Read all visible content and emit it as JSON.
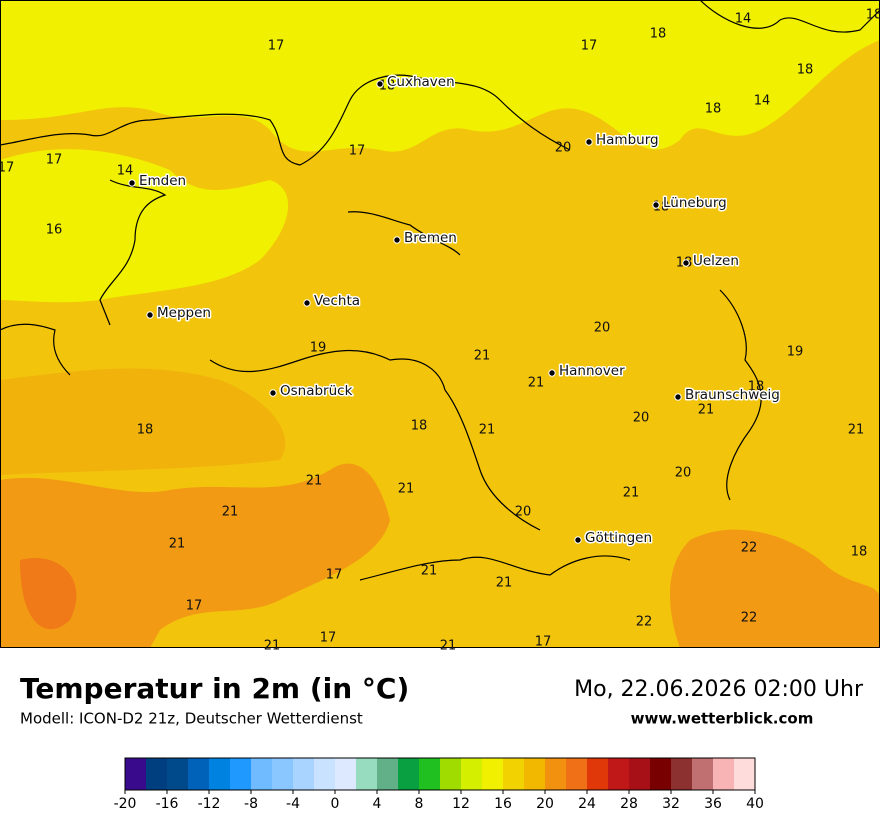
{
  "map": {
    "cities": [
      "Cuxhaven",
      "Hamburg",
      "Emden",
      "Lüneburg",
      "Bremen",
      "Uelzen",
      "Meppen",
      "Vechta",
      "Hannover",
      "Osnabrück",
      "Braunschweig",
      "Göttingen"
    ],
    "values": [
      17,
      17,
      18,
      14,
      18,
      18,
      14,
      18,
      18,
      20,
      17,
      17,
      17,
      14,
      16,
      18,
      18,
      20,
      19,
      19,
      21,
      21,
      18,
      21,
      20,
      21,
      18,
      18,
      21,
      20,
      21,
      21,
      21,
      21,
      20,
      22,
      18,
      21,
      17,
      21,
      21,
      17,
      22,
      22,
      17,
      21,
      21,
      17
    ]
  },
  "footer": {
    "title": "Temperatur in 2m (in °C)",
    "subtitle": "Modell: ICON-D2 21z, Deutscher Wetterdienst",
    "date": "Mo, 22.06.2026 02:00 Uhr",
    "website": "www.wetterblick.com"
  },
  "colorbar": {
    "min": -20,
    "max": 40,
    "ticks": [
      -20,
      -16,
      -12,
      -8,
      -4,
      0,
      4,
      8,
      12,
      16,
      20,
      24,
      28,
      32,
      36,
      40
    ],
    "colors": [
      "#3a0a8c",
      "#003f7f",
      "#004a8c",
      "#0062b8",
      "#0082e0",
      "#2099ff",
      "#70bbff",
      "#8ac6ff",
      "#a8d4ff",
      "#c8e2ff",
      "#dce9ff",
      "#98dcc0",
      "#62b088",
      "#08a040",
      "#20c020",
      "#a0dc00",
      "#d4f000",
      "#f0f000",
      "#f2d200",
      "#f2b800",
      "#f29010",
      "#f07018",
      "#e03808",
      "#c01818",
      "#a81018",
      "#780000",
      "#8c3030",
      "#c07070",
      "#f8b4b4",
      "#ffdcdc"
    ]
  }
}
